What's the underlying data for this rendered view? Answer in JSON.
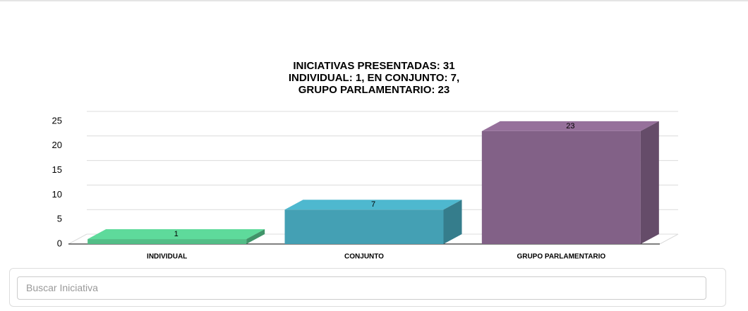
{
  "chart_data": {
    "type": "bar3d",
    "title": [
      "INICIATIVAS PRESENTADAS: 31",
      "INDIVIDUAL: 1, EN CONJUNTO: 7,",
      "GRUPO PARLAMENTARIO: 23"
    ],
    "categories": [
      "INDIVIDUAL",
      "CONJUNTO",
      "GRUPO PARLAMENTARIO"
    ],
    "values": [
      1,
      7,
      23
    ],
    "colors": [
      "#52be87",
      "#44a0b4",
      "#826187"
    ],
    "ylim": [
      0,
      25
    ],
    "yticks": [
      0,
      5,
      10,
      15,
      20,
      25
    ],
    "grid": true
  },
  "search": {
    "placeholder": "Buscar Iniciativa"
  }
}
